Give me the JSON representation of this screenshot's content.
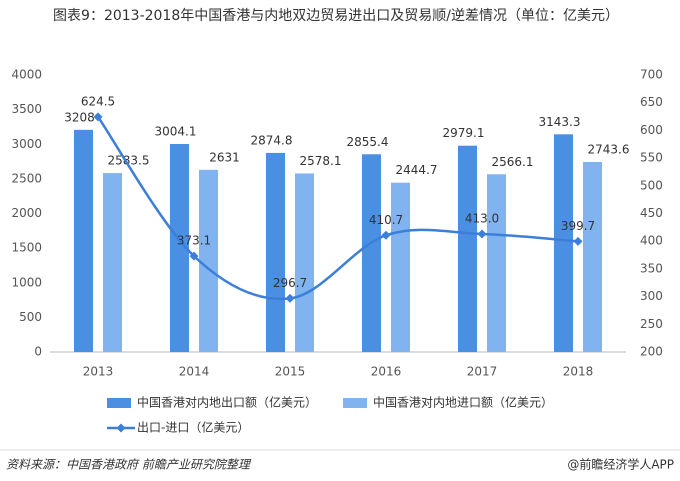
{
  "chart_data": {
    "type": "bar-line",
    "title": "图表9：2013-2018年中国香港与内地双边贸易进出口及贸易顺/逆差情况（单位：亿美元）",
    "categories": [
      "2013",
      "2014",
      "2015",
      "2016",
      "2017",
      "2018"
    ],
    "series": [
      {
        "name": "中国香港对内地出口额（亿美元）",
        "type": "bar",
        "color": "#4a8fe2",
        "values": [
          3208,
          3004.1,
          2874.8,
          2855.4,
          2979.1,
          3143.3
        ]
      },
      {
        "name": "中国香港对内地进口额（亿美元）",
        "type": "bar",
        "color": "#80b3f0",
        "values": [
          2583.5,
          2631,
          2578.1,
          2444.7,
          2566.1,
          2743.6
        ]
      },
      {
        "name": "出口-进口（亿美元）",
        "type": "line",
        "axis": "y2",
        "color": "#3c7fd8",
        "values": [
          624.5,
          373.1,
          296.7,
          410.7,
          413,
          399.7
        ],
        "value_labels": [
          "624.5",
          "373.1",
          "296.7",
          "410.7",
          "413.0",
          "399.7"
        ]
      }
    ],
    "ylim": [
      0,
      4000
    ],
    "yticks": [
      0,
      500,
      1000,
      1500,
      2000,
      2500,
      3000,
      3500,
      4000
    ],
    "y2lim": [
      200,
      700
    ],
    "y2ticks": [
      200,
      250,
      300,
      350,
      400,
      450,
      500,
      550,
      600,
      650,
      700
    ],
    "source": "资料来源：中国香港政府 前瞻产业研究院整理",
    "brand": "@前瞻经济学人APP"
  }
}
